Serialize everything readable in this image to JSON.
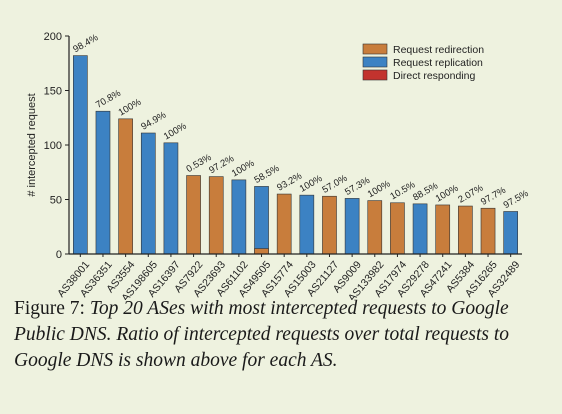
{
  "chart_data": {
    "type": "bar",
    "title": "",
    "xlabel": "",
    "ylabel": "# intercepted request",
    "ylim": [
      0,
      200
    ],
    "yticks": [
      0,
      50,
      100,
      150,
      200
    ],
    "grid": false,
    "legend_position": "top-right",
    "series_styles": [
      {
        "name": "Request redirection",
        "color": "#c87d3c"
      },
      {
        "name": "Request replication",
        "color": "#3c82c3"
      },
      {
        "name": "Direct responding",
        "color": "#c2332e"
      }
    ],
    "bars": [
      {
        "as": "AS38001",
        "value": 182,
        "type": "Request replication",
        "ratio": "98.4%"
      },
      {
        "as": "AS36351",
        "value": 131,
        "type": "Request replication",
        "ratio": "70.8%"
      },
      {
        "as": "AS3554",
        "value": 124,
        "type": "Request redirection",
        "ratio": "100%"
      },
      {
        "as": "AS198605",
        "value": 111,
        "type": "Request replication",
        "ratio": "94.9%"
      },
      {
        "as": "AS16397",
        "value": 102,
        "type": "Request replication",
        "ratio": "100%"
      },
      {
        "as": "AS7922",
        "value": 72,
        "type": "Request redirection",
        "ratio": "0.53%"
      },
      {
        "as": "AS23693",
        "value": 71,
        "type": "Request redirection",
        "ratio": "97.2%"
      },
      {
        "as": "AS61102",
        "value": 68,
        "type": "Request replication",
        "ratio": "100%"
      },
      {
        "as": "AS49505",
        "value": 62,
        "type": "Request replication",
        "ratio": "58.5%",
        "redirection_part": 5
      },
      {
        "as": "AS15774",
        "value": 55,
        "type": "Request redirection",
        "ratio": "93.2%"
      },
      {
        "as": "AS15003",
        "value": 54,
        "type": "Request replication",
        "ratio": "100%"
      },
      {
        "as": "AS21127",
        "value": 53,
        "type": "Request redirection",
        "ratio": "57.0%"
      },
      {
        "as": "AS9009",
        "value": 51,
        "type": "Request replication",
        "ratio": "57.3%"
      },
      {
        "as": "AS133982",
        "value": 49,
        "type": "Request redirection",
        "ratio": "100%"
      },
      {
        "as": "AS17974",
        "value": 47,
        "type": "Request redirection",
        "ratio": "10.5%"
      },
      {
        "as": "AS29278",
        "value": 46,
        "type": "Request replication",
        "ratio": "88.5%"
      },
      {
        "as": "AS47241",
        "value": 45,
        "type": "Request redirection",
        "ratio": "100%"
      },
      {
        "as": "AS5384",
        "value": 44,
        "type": "Request redirection",
        "ratio": "2.07%"
      },
      {
        "as": "AS16265",
        "value": 42,
        "type": "Request redirection",
        "ratio": "97.7%"
      },
      {
        "as": "AS32489",
        "value": 39,
        "type": "Request replication",
        "ratio": "97.5%"
      }
    ]
  },
  "caption": {
    "label": "Figure 7: ",
    "text": "Top 20 ASes with most intercepted requests to Google Public DNS. Ratio of intercepted requests over total requests to Google DNS is shown above for each AS."
  }
}
